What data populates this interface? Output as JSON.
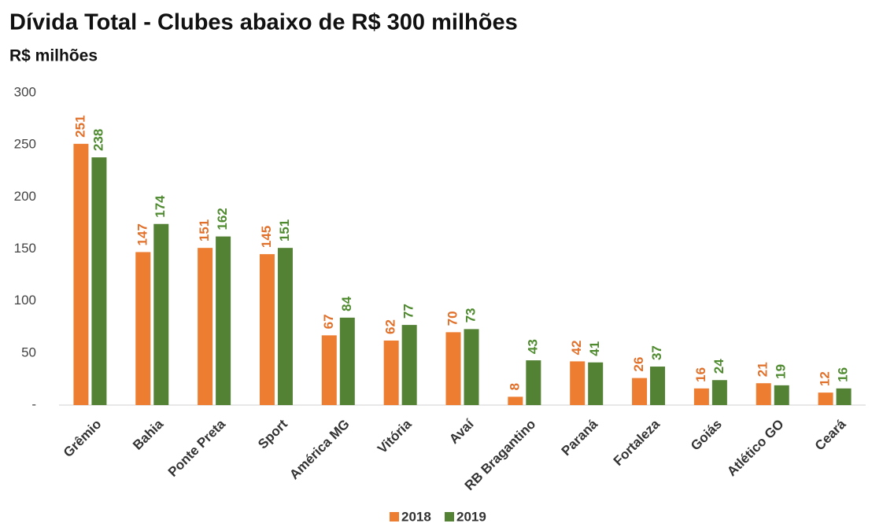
{
  "chart_data": {
    "type": "bar",
    "title": "Dívida Total - Clubes abaixo de R$ 300 milhões",
    "subtitle": "R$ milhões",
    "categories": [
      "Grêmio",
      "Bahia",
      "Ponte Preta",
      "Sport",
      "América MG",
      "Vitória",
      "Avaí",
      "RB Bragantino",
      "Paraná",
      "Fortaleza",
      "Goiás",
      "Atlético GO",
      "Ceará"
    ],
    "series": [
      {
        "name": "2018",
        "color": "#ed7d31",
        "values": [
          251,
          147,
          151,
          145,
          67,
          62,
          70,
          8,
          42,
          26,
          16,
          21,
          12
        ]
      },
      {
        "name": "2019",
        "color": "#548235",
        "values": [
          238,
          174,
          162,
          151,
          84,
          77,
          73,
          43,
          41,
          37,
          24,
          19,
          16
        ]
      }
    ],
    "ylim": [
      0,
      300
    ],
    "yticks": [
      {
        "value": 0,
        "label": "-"
      },
      50,
      100,
      150,
      200,
      250,
      300
    ],
    "grid": false,
    "legend": "bottom"
  }
}
